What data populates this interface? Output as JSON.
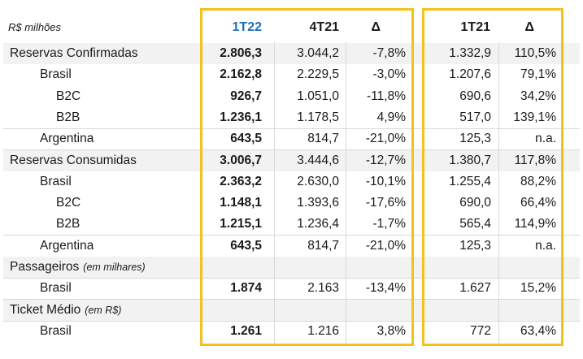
{
  "header": {
    "unit": "R$ milhões",
    "col1": "1T22",
    "col2": "4T21",
    "col3": "Δ",
    "col4": "1T21",
    "col5": "Δ",
    "highlight_color": "#1F6FB5",
    "box_color": "#F5C11C"
  },
  "rows": [
    {
      "label": "Reservas Confirmadas",
      "note": "",
      "v1": "2.806,3",
      "v2": "3.044,2",
      "v3": "-7,8%",
      "v4": "1.332,9",
      "v5": "110,5%"
    },
    {
      "label": "Brasil",
      "note": "",
      "v1": "2.162,8",
      "v2": "2.229,5",
      "v3": "-3,0%",
      "v4": "1.207,6",
      "v5": "79,1%"
    },
    {
      "label": "B2C",
      "note": "",
      "v1": "926,7",
      "v2": "1.051,0",
      "v3": "-11,8%",
      "v4": "690,6",
      "v5": "34,2%"
    },
    {
      "label": "B2B",
      "note": "",
      "v1": "1.236,1",
      "v2": "1.178,5",
      "v3": "4,9%",
      "v4": "517,0",
      "v5": "139,1%"
    },
    {
      "label": "Argentina",
      "note": "",
      "v1": "643,5",
      "v2": "814,7",
      "v3": "-21,0%",
      "v4": "125,3",
      "v5": "n.a."
    },
    {
      "label": "Reservas Consumidas",
      "note": "",
      "v1": "3.006,7",
      "v2": "3.444,6",
      "v3": "-12,7%",
      "v4": "1.380,7",
      "v5": "117,8%"
    },
    {
      "label": "Brasil",
      "note": "",
      "v1": "2.363,2",
      "v2": "2.630,0",
      "v3": "-10,1%",
      "v4": "1.255,4",
      "v5": "88,2%"
    },
    {
      "label": "B2C",
      "note": "",
      "v1": "1.148,1",
      "v2": "1.393,6",
      "v3": "-17,6%",
      "v4": "690,0",
      "v5": "66,4%"
    },
    {
      "label": "B2B",
      "note": "",
      "v1": "1.215,1",
      "v2": "1.236,4",
      "v3": "-1,7%",
      "v4": "565,4",
      "v5": "114,9%"
    },
    {
      "label": "Argentina",
      "note": "",
      "v1": "643,5",
      "v2": "814,7",
      "v3": "-21,0%",
      "v4": "125,3",
      "v5": "n.a."
    },
    {
      "label": "Passageiros",
      "note": "(em milhares)",
      "v1": "",
      "v2": "",
      "v3": "",
      "v4": "",
      "v5": ""
    },
    {
      "label": "Brasil",
      "note": "",
      "v1": "1.874",
      "v2": "2.163",
      "v3": "-13,4%",
      "v4": "1.627",
      "v5": "15,2%"
    },
    {
      "label": "Ticket Médio",
      "note": "(em R$)",
      "v1": "",
      "v2": "",
      "v3": "",
      "v4": "",
      "v5": ""
    },
    {
      "label": "Brasil",
      "note": "",
      "v1": "1.261",
      "v2": "1.216",
      "v3": "3,8%",
      "v4": "772",
      "v5": "63,4%"
    }
  ]
}
